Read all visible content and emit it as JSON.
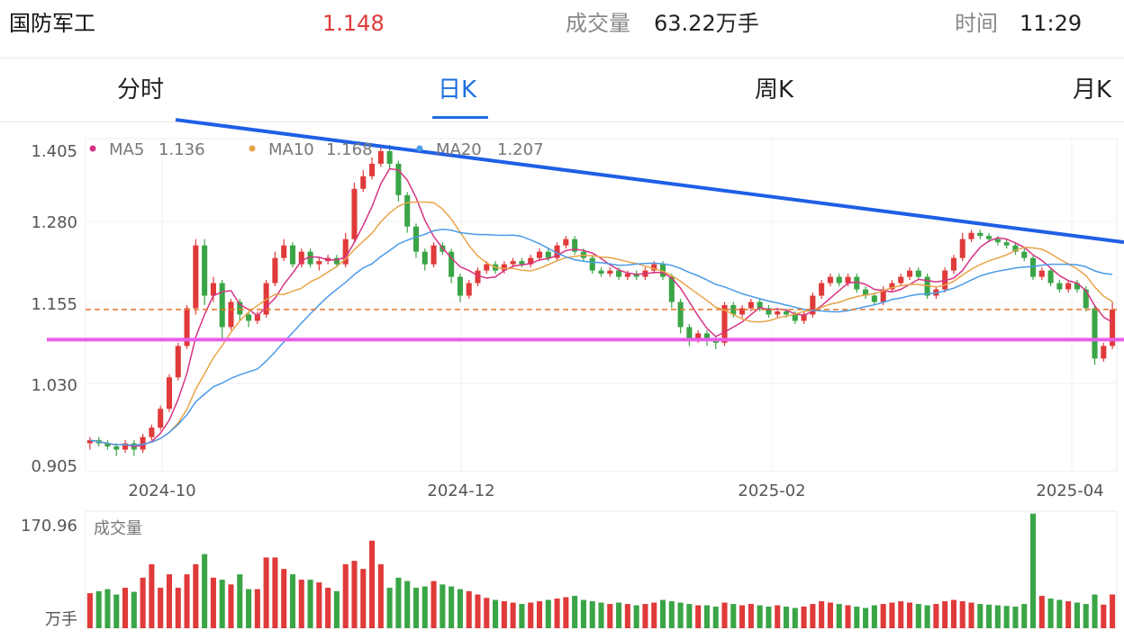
{
  "header": {
    "name": "国防军工",
    "price": "1.148",
    "volume_label": "成交量",
    "volume_value": "63.22万手",
    "time_label": "时间",
    "time_value": "11:29"
  },
  "tabs": [
    {
      "label": "分时",
      "active": false
    },
    {
      "label": "日K",
      "active": true
    },
    {
      "label": "周K",
      "active": false
    },
    {
      "label": "月K",
      "active": false
    }
  ],
  "legend": [
    {
      "name": "MA5",
      "value": "1.136",
      "color": "#d63384"
    },
    {
      "name": "MA10",
      "value": "1.168",
      "color": "#e8a44a"
    },
    {
      "name": "MA20",
      "value": "1.207",
      "color": "#4a9be8"
    }
  ],
  "volume_panel": {
    "title": "成交量",
    "max_label": "170.96",
    "unit": "万手"
  },
  "colors": {
    "up": "#e03a3a",
    "down": "#3aa546",
    "price": "#e03a3a",
    "accent": "#1f6fe0",
    "trendline": "#1f5fe6",
    "support": "#e85ee8",
    "dashed": "#e8752a",
    "grid": "#ececec"
  },
  "chart_data": {
    "type": "candlestick",
    "y_ticks": [
      "1.405",
      "1.280",
      "1.155",
      "1.030",
      "0.905"
    ],
    "x_ticks": [
      "2024-10",
      "2024-12",
      "2025-02",
      "2025-04"
    ],
    "ylim": [
      0.89,
      1.42
    ],
    "annotations": {
      "dashed_level": 1.148,
      "support_level": 1.1,
      "trendline": {
        "from": 1.45,
        "to": 1.255
      }
    },
    "candles": [
      [
        0.935,
        0.94,
        0.925,
        0.945,
        52
      ],
      [
        0.94,
        0.935,
        0.93,
        0.945,
        55
      ],
      [
        0.935,
        0.93,
        0.925,
        0.94,
        58
      ],
      [
        0.93,
        0.925,
        0.915,
        0.935,
        50
      ],
      [
        0.925,
        0.935,
        0.92,
        0.94,
        60
      ],
      [
        0.935,
        0.925,
        0.915,
        0.94,
        54
      ],
      [
        0.925,
        0.945,
        0.92,
        0.95,
        75
      ],
      [
        0.945,
        0.96,
        0.94,
        0.965,
        95
      ],
      [
        0.96,
        0.99,
        0.955,
        0.995,
        60
      ],
      [
        0.99,
        1.04,
        0.985,
        1.045,
        80
      ],
      [
        1.04,
        1.09,
        1.035,
        1.095,
        60
      ],
      [
        1.09,
        1.15,
        1.085,
        1.155,
        80
      ],
      [
        1.15,
        1.25,
        1.14,
        1.26,
        95
      ],
      [
        1.25,
        1.17,
        1.155,
        1.26,
        110
      ],
      [
        1.17,
        1.19,
        1.16,
        1.2,
        75
      ],
      [
        1.19,
        1.12,
        1.1,
        1.195,
        72
      ],
      [
        1.12,
        1.16,
        1.115,
        1.165,
        65
      ],
      [
        1.16,
        1.14,
        1.13,
        1.165,
        80
      ],
      [
        1.14,
        1.13,
        1.12,
        1.145,
        58
      ],
      [
        1.13,
        1.14,
        1.125,
        1.145,
        58
      ],
      [
        1.14,
        1.19,
        1.135,
        1.195,
        105
      ],
      [
        1.19,
        1.23,
        1.185,
        1.24,
        105
      ],
      [
        1.23,
        1.25,
        1.225,
        1.26,
        88
      ],
      [
        1.25,
        1.22,
        1.215,
        1.255,
        80
      ],
      [
        1.22,
        1.24,
        1.215,
        1.245,
        72
      ],
      [
        1.24,
        1.22,
        1.215,
        1.245,
        72
      ],
      [
        1.22,
        1.225,
        1.21,
        1.23,
        68
      ],
      [
        1.225,
        1.23,
        1.22,
        1.235,
        60
      ],
      [
        1.23,
        1.22,
        1.215,
        1.235,
        55
      ],
      [
        1.22,
        1.26,
        1.215,
        1.27,
        95
      ],
      [
        1.26,
        1.34,
        1.255,
        1.35,
        100
      ],
      [
        1.34,
        1.36,
        1.335,
        1.37,
        88
      ],
      [
        1.36,
        1.38,
        1.355,
        1.39,
        130
      ],
      [
        1.38,
        1.4,
        1.375,
        1.41,
        95
      ],
      [
        1.4,
        1.38,
        1.37,
        1.41,
        60
      ],
      [
        1.38,
        1.33,
        1.32,
        1.385,
        75
      ],
      [
        1.33,
        1.28,
        1.27,
        1.335,
        70
      ],
      [
        1.28,
        1.24,
        1.23,
        1.285,
        60
      ],
      [
        1.24,
        1.22,
        1.21,
        1.245,
        62
      ],
      [
        1.22,
        1.25,
        1.215,
        1.255,
        70
      ],
      [
        1.25,
        1.24,
        1.235,
        1.255,
        65
      ],
      [
        1.24,
        1.2,
        1.19,
        1.245,
        62
      ],
      [
        1.2,
        1.17,
        1.16,
        1.205,
        58
      ],
      [
        1.17,
        1.19,
        1.165,
        1.195,
        55
      ],
      [
        1.19,
        1.21,
        1.185,
        1.215,
        50
      ],
      [
        1.21,
        1.22,
        1.205,
        1.225,
        45
      ],
      [
        1.22,
        1.21,
        1.205,
        1.225,
        42
      ],
      [
        1.21,
        1.22,
        1.205,
        1.225,
        40
      ],
      [
        1.22,
        1.225,
        1.215,
        1.23,
        38
      ],
      [
        1.225,
        1.22,
        1.215,
        1.23,
        36
      ],
      [
        1.22,
        1.23,
        1.215,
        1.235,
        38
      ],
      [
        1.23,
        1.24,
        1.225,
        1.245,
        40
      ],
      [
        1.24,
        1.23,
        1.225,
        1.245,
        42
      ],
      [
        1.23,
        1.25,
        1.225,
        1.255,
        44
      ],
      [
        1.25,
        1.26,
        1.245,
        1.265,
        46
      ],
      [
        1.26,
        1.24,
        1.235,
        1.265,
        48
      ],
      [
        1.24,
        1.23,
        1.225,
        1.245,
        42
      ],
      [
        1.23,
        1.21,
        1.205,
        1.235,
        40
      ],
      [
        1.21,
        1.205,
        1.2,
        1.215,
        38
      ],
      [
        1.205,
        1.21,
        1.2,
        1.215,
        36
      ],
      [
        1.21,
        1.2,
        1.195,
        1.215,
        38
      ],
      [
        1.2,
        1.205,
        1.195,
        1.21,
        36
      ],
      [
        1.205,
        1.2,
        1.195,
        1.21,
        34
      ],
      [
        1.2,
        1.21,
        1.195,
        1.215,
        36
      ],
      [
        1.21,
        1.22,
        1.205,
        1.225,
        38
      ],
      [
        1.22,
        1.2,
        1.195,
        1.225,
        42
      ],
      [
        1.2,
        1.16,
        1.15,
        1.205,
        40
      ],
      [
        1.16,
        1.12,
        1.11,
        1.165,
        38
      ],
      [
        1.12,
        1.1,
        1.09,
        1.125,
        36
      ],
      [
        1.1,
        1.11,
        1.095,
        1.115,
        34
      ],
      [
        1.11,
        1.1,
        1.09,
        1.115,
        34
      ],
      [
        1.1,
        1.095,
        1.085,
        1.105,
        32
      ],
      [
        1.095,
        1.155,
        1.09,
        1.16,
        38
      ],
      [
        1.155,
        1.14,
        1.135,
        1.16,
        36
      ],
      [
        1.14,
        1.15,
        1.135,
        1.155,
        34
      ],
      [
        1.15,
        1.16,
        1.145,
        1.165,
        36
      ],
      [
        1.16,
        1.15,
        1.145,
        1.165,
        34
      ],
      [
        1.15,
        1.14,
        1.135,
        1.155,
        32
      ],
      [
        1.14,
        1.145,
        1.135,
        1.15,
        34
      ],
      [
        1.145,
        1.14,
        1.135,
        1.15,
        32
      ],
      [
        1.14,
        1.13,
        1.125,
        1.145,
        30
      ],
      [
        1.13,
        1.14,
        1.125,
        1.145,
        32
      ],
      [
        1.14,
        1.17,
        1.135,
        1.175,
        36
      ],
      [
        1.17,
        1.19,
        1.165,
        1.195,
        40
      ],
      [
        1.19,
        1.2,
        1.185,
        1.205,
        38
      ],
      [
        1.2,
        1.19,
        1.185,
        1.205,
        36
      ],
      [
        1.19,
        1.2,
        1.185,
        1.205,
        34
      ],
      [
        1.2,
        1.18,
        1.175,
        1.205,
        32
      ],
      [
        1.18,
        1.17,
        1.165,
        1.185,
        30
      ],
      [
        1.17,
        1.16,
        1.155,
        1.175,
        34
      ],
      [
        1.16,
        1.18,
        1.155,
        1.185,
        36
      ],
      [
        1.18,
        1.19,
        1.175,
        1.195,
        38
      ],
      [
        1.19,
        1.2,
        1.185,
        1.205,
        40
      ],
      [
        1.2,
        1.21,
        1.195,
        1.215,
        38
      ],
      [
        1.21,
        1.2,
        1.195,
        1.215,
        36
      ],
      [
        1.2,
        1.17,
        1.165,
        1.205,
        34
      ],
      [
        1.17,
        1.18,
        1.165,
        1.185,
        36
      ],
      [
        1.18,
        1.21,
        1.175,
        1.215,
        40
      ],
      [
        1.21,
        1.23,
        1.205,
        1.235,
        42
      ],
      [
        1.23,
        1.26,
        1.225,
        1.27,
        40
      ],
      [
        1.26,
        1.27,
        1.255,
        1.275,
        38
      ],
      [
        1.27,
        1.265,
        1.26,
        1.275,
        36
      ],
      [
        1.265,
        1.26,
        1.255,
        1.27,
        35
      ],
      [
        1.26,
        1.255,
        1.25,
        1.265,
        34
      ],
      [
        1.255,
        1.25,
        1.245,
        1.26,
        33
      ],
      [
        1.25,
        1.24,
        1.235,
        1.255,
        32
      ],
      [
        1.24,
        1.23,
        1.225,
        1.245,
        36
      ],
      [
        1.23,
        1.2,
        1.195,
        1.235,
        170
      ],
      [
        1.2,
        1.21,
        1.195,
        1.215,
        48
      ],
      [
        1.21,
        1.19,
        1.185,
        1.215,
        44
      ],
      [
        1.19,
        1.18,
        1.175,
        1.195,
        42
      ],
      [
        1.18,
        1.19,
        1.175,
        1.195,
        40
      ],
      [
        1.19,
        1.18,
        1.175,
        1.195,
        38
      ],
      [
        1.18,
        1.15,
        1.145,
        1.185,
        36
      ],
      [
        1.15,
        1.07,
        1.06,
        1.155,
        50
      ],
      [
        1.07,
        1.09,
        1.065,
        1.095,
        35
      ],
      [
        1.09,
        1.148,
        1.085,
        1.16,
        50
      ]
    ]
  }
}
